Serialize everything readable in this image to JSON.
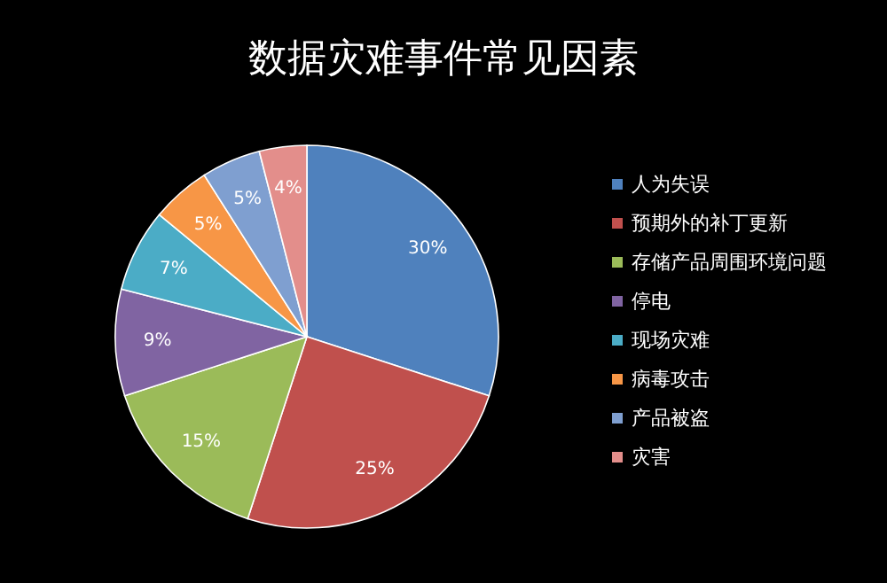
{
  "chart_data": {
    "type": "pie",
    "title": "数据灾难事件常见因素",
    "categories": [
      "人为失误",
      "预期外的补丁更新",
      "存储产品周围环境问题",
      "停电",
      "现场灾难",
      "病毒攻击",
      "产品被盗",
      "灾害"
    ],
    "values": [
      30,
      25,
      15,
      9,
      7,
      5,
      5,
      4
    ],
    "value_labels": [
      "30%",
      "25%",
      "15%",
      "9%",
      "7%",
      "5%",
      "5%",
      "4%"
    ],
    "colors": [
      "#4f81bd",
      "#c0504d",
      "#9bbb59",
      "#8064a2",
      "#4bacc6",
      "#f79646",
      "#7f9fd0",
      "#e38e8b"
    ],
    "legend": "right"
  }
}
